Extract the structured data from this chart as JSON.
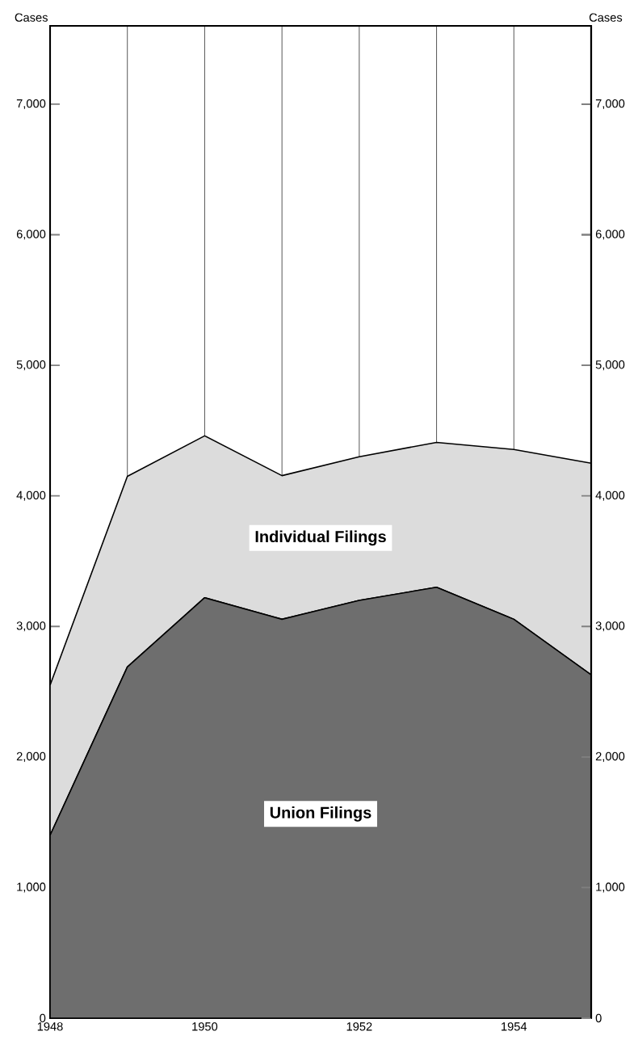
{
  "chart_data": {
    "type": "area",
    "stacked": true,
    "grid": "x",
    "x": [
      1948,
      1949,
      1950,
      1951,
      1952,
      1953,
      1954,
      1955
    ],
    "series": [
      {
        "name": "Union Filings",
        "color": "#6e6e6e",
        "values": [
          1400,
          2690,
          3220,
          3055,
          3200,
          3300,
          3055,
          2630
        ]
      },
      {
        "name": "Individual Filings",
        "color": "#dcdcdc",
        "values": [
          1150,
          1460,
          1240,
          1100,
          1100,
          1110,
          1300,
          1620
        ]
      }
    ],
    "xlim": [
      1948,
      1955
    ],
    "xticks": [
      1948,
      {
        "value": 1949,
        "label": null
      },
      1950,
      {
        "value": 1951,
        "label": null
      },
      1952,
      {
        "value": 1953,
        "label": null
      },
      1954,
      {
        "value": 1955,
        "label": null
      }
    ],
    "ylim": [
      0,
      7600
    ],
    "yticks": [
      0,
      {
        "value": 1000,
        "label": "1,000"
      },
      {
        "value": 2000,
        "label": "2,000"
      },
      {
        "value": 3000,
        "label": "3,000"
      },
      {
        "value": 4000,
        "label": "4,000"
      },
      {
        "value": 5000,
        "label": "5,000"
      },
      {
        "value": 6000,
        "label": "6,000"
      },
      {
        "value": 7000,
        "label": "7,000"
      }
    ],
    "y2lim": [
      0,
      7600
    ],
    "y2ticks": [
      0,
      {
        "value": 1000,
        "label": "1,000"
      },
      {
        "value": 2000,
        "label": "2,000"
      },
      {
        "value": 3000,
        "label": "3,000"
      },
      {
        "value": 4000,
        "label": "4,000"
      },
      {
        "value": 5000,
        "label": "5,000"
      },
      {
        "value": 6000,
        "label": "6,000"
      },
      {
        "value": 7000,
        "label": "7,000"
      }
    ],
    "ylabel": "Cases",
    "y2label": "Cases"
  }
}
